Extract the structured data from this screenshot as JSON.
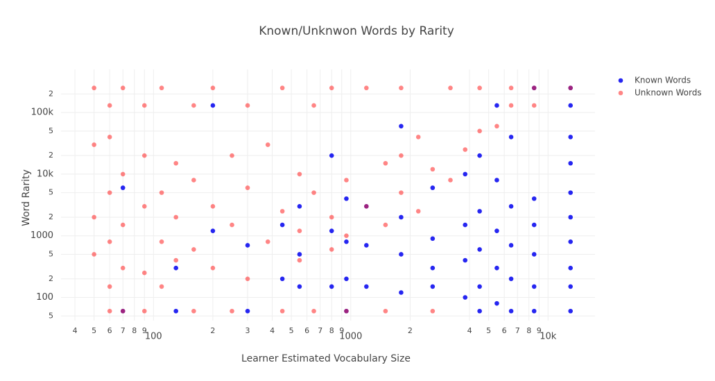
{
  "chart_data": {
    "type": "scatter",
    "title": "Known/Unknwon Words by Rarity",
    "x_label": "Learner Estimated Vocabulary Size",
    "y_label": "Word Rarity",
    "xscale": "log",
    "yscale": "log",
    "grid": true,
    "legend": "top-right",
    "xlim": [
      34,
      17300
    ],
    "ylim": [
      42,
      500000
    ],
    "xticks": [
      {
        "value": 40,
        "label": "4"
      },
      {
        "value": 50,
        "label": "5"
      },
      {
        "value": 60,
        "label": "6"
      },
      {
        "value": 70,
        "label": "7"
      },
      {
        "value": 80,
        "label": "8"
      },
      {
        "value": 90,
        "label": "9"
      },
      100,
      {
        "value": 200,
        "label": "2"
      },
      {
        "value": 300,
        "label": "3"
      },
      {
        "value": 400,
        "label": "4"
      },
      {
        "value": 500,
        "label": "5"
      },
      {
        "value": 600,
        "label": "6"
      },
      {
        "value": 700,
        "label": "7"
      },
      {
        "value": 800,
        "label": "8"
      },
      {
        "value": 900,
        "label": "9"
      },
      1000,
      {
        "value": 2000,
        "label": "2"
      },
      {
        "value": 4000,
        "label": "4"
      },
      {
        "value": 5000,
        "label": "5"
      },
      {
        "value": 6000,
        "label": "6"
      },
      {
        "value": 7000,
        "label": "7"
      },
      {
        "value": 8000,
        "label": "8"
      },
      {
        "value": 9000,
        "label": "9"
      },
      {
        "value": 10000,
        "label": "10k"
      }
    ],
    "yticks": [
      {
        "value": 50,
        "label": "5"
      },
      100,
      {
        "value": 200,
        "label": "2"
      },
      {
        "value": 500,
        "label": "5"
      },
      1000,
      {
        "value": 2000,
        "label": "2"
      },
      {
        "value": 5000,
        "label": "5"
      },
      {
        "value": 10000,
        "label": "10k"
      },
      {
        "value": 20000,
        "label": "2"
      },
      {
        "value": 50000,
        "label": "5"
      },
      {
        "value": 100000,
        "label": "100k"
      },
      {
        "value": 200000,
        "label": "2"
      }
    ],
    "series": [
      {
        "name": "Known Words",
        "color": "#0000ee",
        "x": [
          13000,
          13000,
          13000,
          13000,
          13000,
          13000,
          13000,
          13000,
          13000,
          13000,
          8500,
          8500,
          8500,
          8500,
          8500,
          8500,
          6500,
          6500,
          6500,
          6500,
          6500,
          5500,
          5500,
          5500,
          5500,
          5500,
          4500,
          4500,
          4500,
          4500,
          4500,
          3800,
          3800,
          3800,
          3800,
          2600,
          2600,
          2600,
          2600,
          1800,
          1800,
          1800,
          1800,
          1200,
          1200,
          1200,
          950,
          950,
          950,
          950,
          800,
          800,
          800,
          550,
          550,
          550,
          450,
          450,
          300,
          300,
          200,
          200,
          130,
          130,
          70,
          70
        ],
        "y": [
          60,
          150,
          300,
          800,
          2000,
          5000,
          15000,
          40000,
          130000,
          250000,
          60,
          150,
          500,
          1500,
          4000,
          250000,
          60,
          200,
          700,
          3000,
          40000,
          80,
          300,
          1200,
          8000,
          130000,
          60,
          150,
          600,
          2500,
          20000,
          100,
          400,
          1500,
          10000,
          150,
          300,
          900,
          6000,
          120,
          500,
          2000,
          60000,
          150,
          700,
          3000,
          60,
          200,
          800,
          4000,
          150,
          1200,
          20000,
          150,
          500,
          3000,
          200,
          1500,
          60,
          700,
          1200,
          130000,
          300,
          60,
          60,
          6000
        ]
      },
      {
        "name": "Unknown Words",
        "color": "#ff2020",
        "x": [
          50,
          50,
          50,
          50,
          60,
          60,
          60,
          60,
          60,
          60,
          70,
          70,
          70,
          70,
          70,
          90,
          90,
          90,
          90,
          90,
          110,
          110,
          110,
          110,
          130,
          130,
          130,
          160,
          160,
          160,
          160,
          200,
          200,
          200,
          250,
          250,
          250,
          300,
          300,
          300,
          380,
          380,
          450,
          450,
          450,
          550,
          550,
          550,
          650,
          650,
          650,
          800,
          800,
          800,
          950,
          950,
          950,
          1200,
          1200,
          1500,
          1500,
          1500,
          1800,
          1800,
          1800,
          2200,
          2200,
          2600,
          2600,
          3200,
          3200,
          3800,
          4500,
          4500,
          5500,
          6500,
          6500,
          8500,
          8500,
          13000
        ],
        "y": [
          250000,
          2000,
          500,
          30000,
          60,
          150,
          800,
          5000,
          40000,
          130000,
          60,
          300,
          1500,
          10000,
          250000,
          60,
          250,
          3000,
          20000,
          130000,
          150,
          800,
          5000,
          250000,
          400,
          2000,
          15000,
          60,
          600,
          8000,
          130000,
          300,
          3000,
          250000,
          60,
          1500,
          20000,
          200,
          6000,
          130000,
          800,
          30000,
          60,
          2500,
          250000,
          400,
          1200,
          10000,
          60,
          5000,
          130000,
          600,
          2000,
          250000,
          60,
          1000,
          8000,
          3000,
          250000,
          1500,
          15000,
          60,
          5000,
          20000,
          250000,
          2500,
          40000,
          12000,
          60,
          8000,
          250000,
          25000,
          50000,
          250000,
          60000,
          130000,
          250000,
          250000,
          130000,
          250000
        ]
      }
    ]
  }
}
